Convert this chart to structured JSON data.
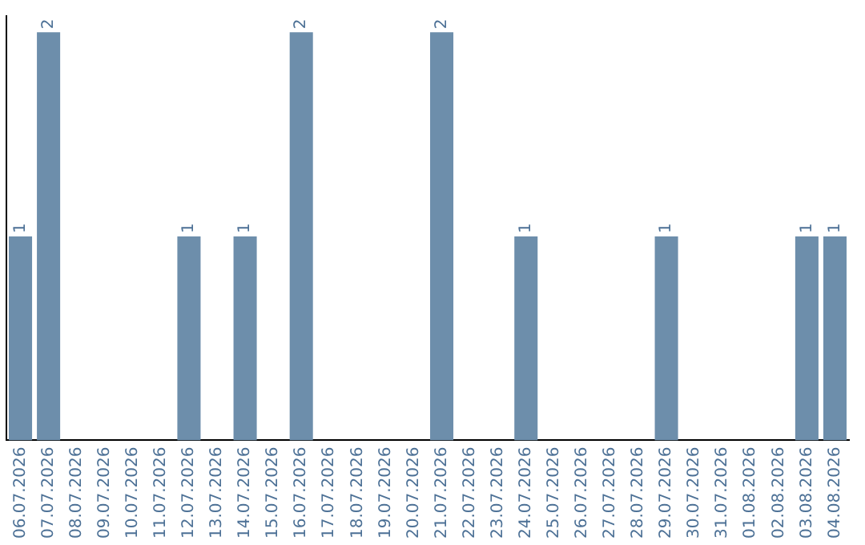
{
  "chart_data": {
    "type": "bar",
    "categories": [
      "06.07.2026",
      "07.07.2026",
      "08.07.2026",
      "09.07.2026",
      "10.07.2026",
      "11.07.2026",
      "12.07.2026",
      "13.07.2026",
      "14.07.2026",
      "15.07.2026",
      "16.07.2026",
      "17.07.2026",
      "18.07.2026",
      "19.07.2026",
      "20.07.2026",
      "21.07.2026",
      "22.07.2026",
      "23.07.2026",
      "24.07.2026",
      "25.07.2026",
      "26.07.2026",
      "27.07.2026",
      "28.07.2026",
      "29.07.2026",
      "30.07.2026",
      "31.07.2026",
      "01.08.2026",
      "02.08.2026",
      "03.08.2026",
      "04.08.2026"
    ],
    "values": [
      1,
      2,
      0,
      0,
      0,
      0,
      1,
      0,
      1,
      0,
      2,
      0,
      0,
      0,
      0,
      2,
      0,
      0,
      1,
      0,
      0,
      0,
      0,
      1,
      0,
      0,
      0,
      0,
      1,
      1
    ],
    "value_labels": [
      "1",
      "2",
      null,
      null,
      null,
      null,
      "1",
      null,
      "1",
      null,
      "2",
      null,
      null,
      null,
      null,
      "2",
      null,
      null,
      "1",
      null,
      null,
      null,
      null,
      "1",
      null,
      null,
      null,
      null,
      "1",
      "1"
    ],
    "color": "#6d8eab",
    "ylim": [
      0,
      2.08
    ],
    "tick_labels": "x",
    "grid": false,
    "legend": false
  }
}
